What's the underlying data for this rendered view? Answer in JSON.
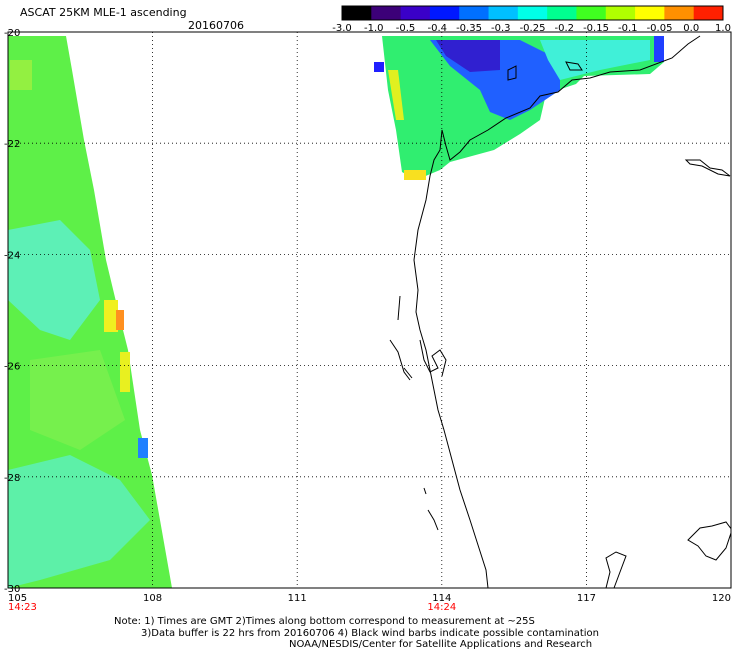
{
  "header": {
    "title": "ASCAT 25KM MLE-1 ascending",
    "date": "20160706"
  },
  "colorbar": {
    "labels": [
      "-3.0",
      "-1.0",
      "-0.5",
      "-0.4",
      "-0.35",
      "-0.3",
      "-0.25",
      "-0.2",
      "-0.15",
      "-0.1",
      "-0.05",
      "0.0",
      "1.0"
    ],
    "colors": [
      "#000000",
      "#3c0078",
      "#3a00c8",
      "#0018ff",
      "#0070ff",
      "#00c0ff",
      "#00ffe8",
      "#00ff90",
      "#40ff20",
      "#b0ff00",
      "#ffff00",
      "#ff9000",
      "#ff2000"
    ]
  },
  "axes": {
    "x_ticks": [
      "105",
      "108",
      "111",
      "114",
      "117",
      "120"
    ],
    "y_ticks": [
      "-20",
      "-22",
      "-24",
      "-26",
      "-28",
      "-30"
    ],
    "time_labels": [
      {
        "text": "14:23",
        "lon": 105
      },
      {
        "text": "14:24",
        "lon": 114
      }
    ],
    "time_color": "#ff0000"
  },
  "notes": {
    "line1": "Note: 1) Times are GMT 2)Times along bottom correspond to measurement at ~25S",
    "line2": "3)Data buffer is 22 hrs from 20160706 4) Black wind barbs indicate possible contamination",
    "line3": "NOAA/NESDIS/Center for Satellite Applications and Research"
  }
}
